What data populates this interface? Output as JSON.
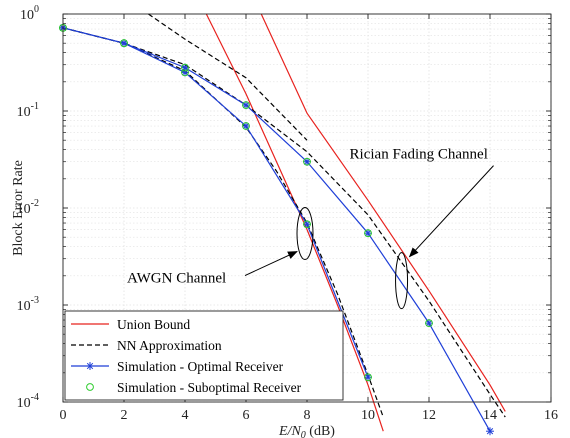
{
  "chart_data": {
    "type": "line",
    "title": "",
    "xlabel": "E/N0 (dB)",
    "xlabel_parts": {
      "main": "E/N",
      "sub": "0",
      "unit": " (dB)"
    },
    "ylabel": "Block Error Rate",
    "xlim": [
      0,
      16
    ],
    "ylim": [
      0.0001,
      1
    ],
    "yscale": "log",
    "grid": true,
    "legend_position": "bottom-left",
    "x_ticks": [
      "0",
      "2",
      "4",
      "6",
      "8",
      "10",
      "12",
      "14",
      "16"
    ],
    "y_ticks": [
      {
        "base": "10",
        "exp": "0"
      },
      {
        "base": "10",
        "exp": "-1"
      },
      {
        "base": "10",
        "exp": "-2"
      },
      {
        "base": "10",
        "exp": "-3"
      },
      {
        "base": "10",
        "exp": "-4"
      }
    ],
    "colors": {
      "union": "#e8231f",
      "nn": "#000000",
      "optimal": "#1f3fd8",
      "suboptimal": "#2ecc2e",
      "grid": "#e2e2e2"
    },
    "series": [
      {
        "name": "Union Bound",
        "group": "AWGN",
        "color": "#e8231f",
        "dash": "solid",
        "marker": "none",
        "x": [
          4.7,
          6,
          7,
          8,
          9,
          10,
          10.5
        ],
        "y": [
          1.0,
          0.15,
          0.03,
          0.006,
          0.001,
          0.00015,
          5e-05
        ]
      },
      {
        "name": "NN Approximation",
        "group": "AWGN",
        "color": "#000000",
        "dash": "dashed",
        "marker": "none",
        "x": [
          0,
          2,
          4,
          6,
          7,
          8,
          9,
          10,
          10.5
        ],
        "y": [
          0.72,
          0.5,
          0.26,
          0.068,
          0.024,
          0.007,
          0.0013,
          0.00019,
          7e-05
        ]
      },
      {
        "name": "Simulation - Optimal Receiver",
        "group": "AWGN",
        "color": "#1f3fd8",
        "dash": "solid",
        "marker": "star",
        "x": [
          0,
          2,
          4,
          6,
          8,
          10
        ],
        "y": [
          0.72,
          0.5,
          0.25,
          0.07,
          0.0068,
          0.00018
        ]
      },
      {
        "name": "Simulation - Suboptimal Receiver",
        "group": "AWGN",
        "color": "#2ecc2e",
        "dash": "none",
        "marker": "circle",
        "x": [
          0,
          2,
          4,
          6,
          8,
          10
        ],
        "y": [
          0.72,
          0.5,
          0.25,
          0.07,
          0.0068,
          0.00018
        ]
      },
      {
        "name": "Union Bound",
        "group": "Rician",
        "color": "#e8231f",
        "dash": "solid",
        "marker": "none",
        "x": [
          6.5,
          8,
          10,
          12,
          14,
          14.5
        ],
        "y": [
          1.0,
          0.095,
          0.012,
          0.0014,
          0.00015,
          8e-05
        ]
      },
      {
        "name": "NN Approximation",
        "group": "Rician",
        "color": "#000000",
        "dash": "dashed",
        "marker": "none",
        "x": [
          0,
          2,
          4,
          6,
          8,
          10,
          12,
          14,
          14.5
        ],
        "y": [
          0.72,
          0.5,
          0.3,
          0.115,
          0.038,
          0.0085,
          0.0011,
          0.00012,
          7e-05
        ]
      },
      {
        "name": "Simulation - Optimal Receiver",
        "group": "Rician",
        "color": "#1f3fd8",
        "dash": "solid",
        "marker": "star",
        "x": [
          0,
          2,
          4,
          6,
          8,
          10,
          12,
          14
        ],
        "y": [
          0.72,
          0.5,
          0.28,
          0.115,
          0.03,
          0.0055,
          0.00065,
          5e-05
        ]
      },
      {
        "name": "Simulation - Suboptimal Receiver",
        "group": "Rician",
        "color": "#2ecc2e",
        "dash": "none",
        "marker": "circle",
        "x": [
          0,
          2,
          4,
          6,
          8,
          10,
          12
        ],
        "y": [
          0.72,
          0.5,
          0.28,
          0.115,
          0.03,
          0.0055,
          0.00065
        ]
      },
      {
        "name": "",
        "group": "extra",
        "color": "#000000",
        "dash": "dashed",
        "marker": "none",
        "x": [
          2.8,
          4,
          6,
          8
        ],
        "y": [
          1.0,
          0.55,
          0.22,
          0.05
        ]
      }
    ],
    "annotations": [
      {
        "text": "AWGN Channel",
        "ellipse_center": [
          8,
          0.006
        ]
      },
      {
        "text": "Rician Fading Channel",
        "ellipse_center": [
          11.1,
          0.0017
        ]
      }
    ],
    "legend": [
      {
        "label": "Union Bound",
        "color": "#e8231f",
        "dash": "solid",
        "marker": "none"
      },
      {
        "label": "NN Approximation",
        "color": "#000000",
        "dash": "dashed",
        "marker": "none"
      },
      {
        "label": "Simulation - Optimal Receiver",
        "color": "#1f3fd8",
        "dash": "solid",
        "marker": "star"
      },
      {
        "label": "Simulation - Suboptimal Receiver",
        "color": "#2ecc2e",
        "dash": "none",
        "marker": "circle"
      }
    ]
  }
}
